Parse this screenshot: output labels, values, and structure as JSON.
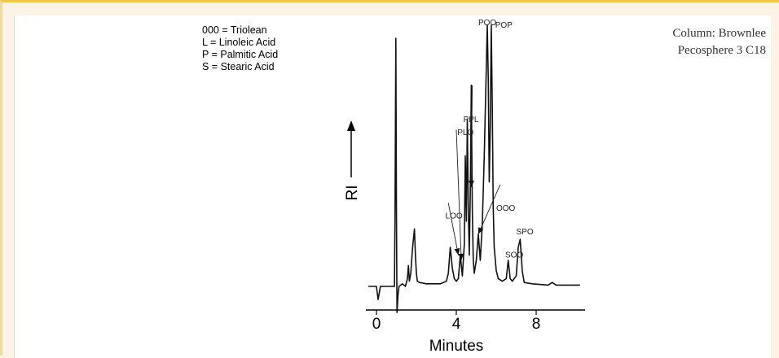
{
  "legend": {
    "items": [
      "000 = Triolean",
      "L = Linoleic Acid",
      "P = Palmitic Acid",
      "S = Stearic Acid"
    ]
  },
  "column_note": {
    "line1": "Column: Brownlee",
    "line2": "Pecosphere 3 C18"
  },
  "chart_data": {
    "type": "line",
    "title": "",
    "xlabel": "Minutes",
    "ylabel": "RI",
    "xlim": [
      -0.5,
      10.3
    ],
    "ylim": [
      -0.8,
      10
    ],
    "grid": false,
    "x_ticks": [
      0,
      4,
      8
    ],
    "x_tick_labels": [
      "0",
      "4",
      "8"
    ],
    "series": [
      {
        "x": [
          -0.4,
          -0.05,
          0.0,
          0.08,
          0.2,
          0.5,
          0.9,
          0.93,
          0.97,
          1.0,
          1.03,
          1.08,
          1.13,
          1.3,
          1.45,
          1.55,
          1.6,
          1.65,
          1.72,
          1.8,
          1.9,
          1.95,
          2.0,
          2.05,
          2.15,
          2.5,
          3.2,
          3.5,
          3.6,
          3.7,
          3.8,
          3.9,
          4.0,
          4.1,
          4.2,
          4.3,
          4.4,
          4.45,
          4.5,
          4.55,
          4.6,
          4.65,
          4.7,
          4.75,
          4.8,
          4.85,
          4.9,
          5.0,
          5.1,
          5.2,
          5.3,
          5.4,
          5.5,
          5.55,
          5.6,
          5.65,
          5.7,
          5.75,
          5.8,
          5.85,
          5.9,
          6.0,
          6.1,
          6.3,
          6.5,
          6.6,
          6.7,
          6.8,
          7.0,
          7.1,
          7.2,
          7.3,
          7.4,
          7.8,
          8.6,
          8.8,
          9.0,
          9.5,
          10.2
        ],
        "y": [
          0.0,
          0.0,
          0.0,
          -0.5,
          0.0,
          0.0,
          0.0,
          3.0,
          9.5,
          3.0,
          -1.0,
          -0.3,
          0.0,
          0.1,
          0.0,
          0.3,
          0.8,
          0.2,
          0.5,
          1.4,
          2.2,
          1.2,
          0.5,
          0.2,
          0.15,
          0.1,
          0.1,
          0.2,
          0.5,
          1.5,
          0.7,
          0.3,
          0.2,
          0.3,
          1.2,
          0.4,
          1.6,
          5.0,
          2.5,
          6.4,
          3.0,
          1.2,
          3.5,
          7.7,
          3.0,
          1.0,
          0.5,
          1.0,
          2.0,
          1.0,
          2.4,
          5.0,
          8.4,
          10.0,
          8.0,
          4.0,
          6.0,
          10.0,
          7.0,
          3.0,
          1.5,
          0.6,
          0.3,
          0.2,
          0.3,
          1.0,
          0.3,
          0.2,
          0.4,
          1.5,
          1.8,
          0.6,
          0.15,
          0.1,
          0.05,
          0.15,
          0.05,
          0.05,
          0.05
        ]
      }
    ],
    "peak_labels": [
      {
        "text": "POO",
        "x": 5.1,
        "y": 10.0
      },
      {
        "text": "POP",
        "x": 5.95,
        "y": 9.9
      },
      {
        "text": "PPL",
        "x": 4.35,
        "y": 6.3
      },
      {
        "text": "PLO",
        "x": 4.05,
        "y": 5.8
      },
      {
        "text": "LOO",
        "x": 3.45,
        "y": 2.6
      },
      {
        "text": "OOO",
        "x": 6.0,
        "y": 2.9
      },
      {
        "text": "SPO",
        "x": 7.0,
        "y": 2.0
      },
      {
        "text": "SOO",
        "x": 6.45,
        "y": 1.1
      }
    ]
  }
}
